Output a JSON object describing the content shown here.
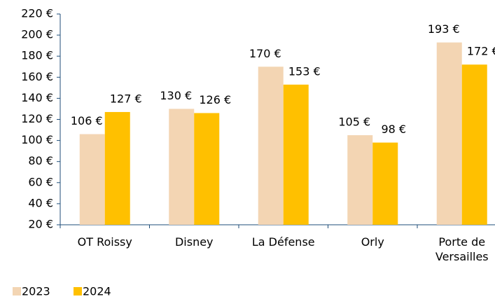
{
  "chart_data": {
    "type": "bar",
    "categories": [
      "OT Roissy",
      "Disney",
      "La Défense",
      "Orly",
      "Porte de Versailles"
    ],
    "series": [
      {
        "name": "2023",
        "color": "#f3d5b3",
        "values": [
          106,
          130,
          170,
          105,
          193
        ],
        "value_labels": [
          "106 €",
          "130 €",
          "170 €",
          "105 €",
          "193 €"
        ]
      },
      {
        "name": "2024",
        "color": "#ffc000",
        "values": [
          127,
          126,
          153,
          98,
          172
        ],
        "value_labels": [
          "127 €",
          "126 €",
          "153 €",
          "98 €",
          "172 €"
        ]
      }
    ],
    "ylim": [
      20,
      220
    ],
    "yticks": [
      {
        "value": 20,
        "label": "20 €"
      },
      {
        "value": 40,
        "label": "40 €"
      },
      {
        "value": 60,
        "label": "60 €"
      },
      {
        "value": 80,
        "label": "80 €"
      },
      {
        "value": 100,
        "label": "100 €"
      },
      {
        "value": 120,
        "label": "120 €"
      },
      {
        "value": 140,
        "label": "140 €"
      },
      {
        "value": 160,
        "label": "160 €"
      },
      {
        "value": 180,
        "label": "180 €"
      },
      {
        "value": 200,
        "label": "200 €"
      },
      {
        "value": 220,
        "label": "220 €"
      }
    ],
    "legend": "bottom-left"
  }
}
